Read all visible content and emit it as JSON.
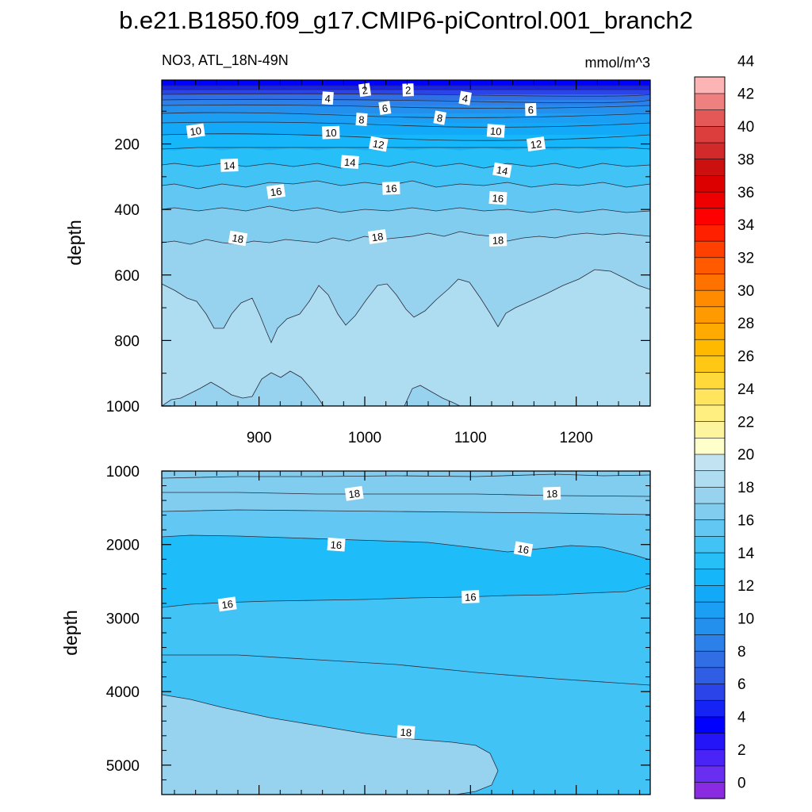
{
  "title": "b.e21.B1850.f09_g17.CMIP6-piControl.001_branch2",
  "chart_data": [
    {
      "type": "heatmap",
      "panel": "upper",
      "subtitle_left": "NO3, ATL_18N-49N",
      "subtitle_right": "mmol/m^3",
      "ylabel": "depth",
      "xlim": [
        808,
        1270
      ],
      "ylim": [
        1000,
        5
      ],
      "x_ticks": [
        900,
        1000,
        1100,
        1200
      ],
      "y_ticks": [
        200,
        400,
        600,
        800,
        1000
      ],
      "contour_labels": [
        {
          "value": "2",
          "x": 1000,
          "y": 35
        },
        {
          "value": "2",
          "x": 1041,
          "y": 35
        },
        {
          "value": "4",
          "x": 965,
          "y": 60
        },
        {
          "value": "4",
          "x": 1095,
          "y": 60
        },
        {
          "value": "6",
          "x": 1019,
          "y": 90
        },
        {
          "value": "6",
          "x": 1157,
          "y": 95
        },
        {
          "value": "8",
          "x": 997,
          "y": 125
        },
        {
          "value": "8",
          "x": 1071,
          "y": 120
        },
        {
          "value": "10",
          "x": 840,
          "y": 160
        },
        {
          "value": "10",
          "x": 968,
          "y": 165
        },
        {
          "value": "10",
          "x": 1124,
          "y": 160
        },
        {
          "value": "12",
          "x": 1013,
          "y": 200
        },
        {
          "value": "12",
          "x": 1162,
          "y": 200
        },
        {
          "value": "14",
          "x": 872,
          "y": 265
        },
        {
          "value": "14",
          "x": 986,
          "y": 255
        },
        {
          "value": "14",
          "x": 1130,
          "y": 280
        },
        {
          "value": "16",
          "x": 916,
          "y": 345
        },
        {
          "value": "16",
          "x": 1025,
          "y": 335
        },
        {
          "value": "16",
          "x": 1126,
          "y": 365
        },
        {
          "value": "18",
          "x": 880,
          "y": 488
        },
        {
          "value": "18",
          "x": 1012,
          "y": 483
        },
        {
          "value": "18",
          "x": 1126,
          "y": 493
        }
      ]
    },
    {
      "type": "heatmap",
      "panel": "lower",
      "ylabel": "depth",
      "ylim": [
        5400,
        1000
      ],
      "y_ticks": [
        1000,
        2000,
        3000,
        4000,
        5000
      ],
      "contour_labels": [
        {
          "value": "18",
          "x": 990,
          "y": 1305
        },
        {
          "value": "18",
          "x": 1177,
          "y": 1305
        },
        {
          "value": "16",
          "x": 973,
          "y": 2000
        },
        {
          "value": "16",
          "x": 1150,
          "y": 2060
        },
        {
          "value": "16",
          "x": 870,
          "y": 2810
        },
        {
          "value": "16",
          "x": 1100,
          "y": 2710
        },
        {
          "value": "18",
          "x": 1039,
          "y": 4550
        }
      ]
    }
  ],
  "colorbar": {
    "labels": [
      "0",
      "2",
      "4",
      "6",
      "8",
      "10",
      "12",
      "14",
      "16",
      "18",
      "20",
      "22",
      "24",
      "26",
      "28",
      "30",
      "32",
      "34",
      "36",
      "38",
      "40",
      "42",
      "44"
    ],
    "colors": [
      "#8a2be2",
      "#6a2ef0",
      "#4a23f6",
      "#2414f8",
      "#0000ff",
      "#1623f5",
      "#2b44ea",
      "#2f5ee4",
      "#2f6ee4",
      "#2b80ea",
      "#2490ee",
      "#1a9ff4",
      "#12aaf8",
      "#15b7fa",
      "#26bff8",
      "#42c3f6",
      "#62c8f3",
      "#80cdef",
      "#97d3ee",
      "#aedcf0",
      "#c2e3f2",
      "#ffffcc",
      "#fff49e",
      "#ffee80",
      "#ffe45e",
      "#ffd83a",
      "#ffc814",
      "#ffba00",
      "#ffaa00",
      "#ff9a00",
      "#ff8c00",
      "#ff7200",
      "#ff5a00",
      "#ff4000",
      "#ff2000",
      "#ff0000",
      "#ee0000",
      "#dd0000",
      "#cc1010",
      "#d22a2a",
      "#dc3e3e",
      "#e45858",
      "#ee8080",
      "#fcb4b4"
    ]
  }
}
